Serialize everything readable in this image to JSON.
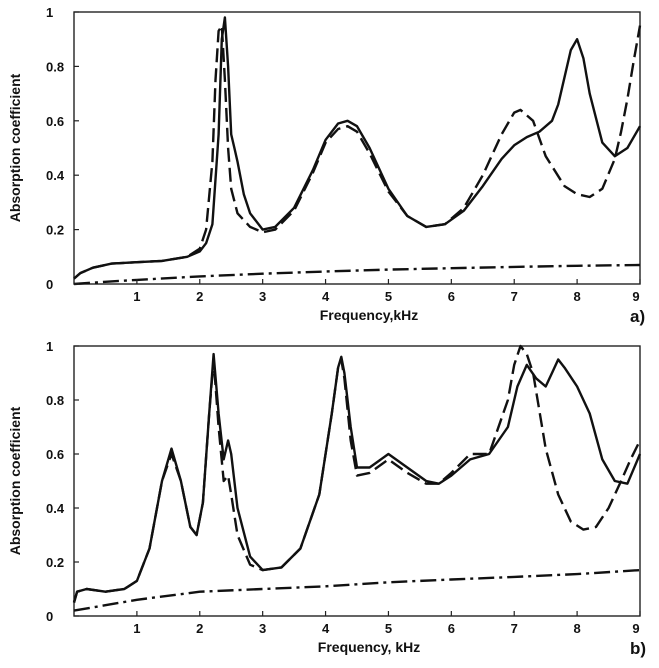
{
  "chart_data": [
    {
      "type": "line",
      "panel_label": "a)",
      "xlabel": "Frequency,kHz",
      "ylabel": "Absorption coefficient",
      "xlim": [
        0,
        9
      ],
      "ylim": [
        0,
        1
      ],
      "xticks": [
        "1",
        "2",
        "3",
        "4",
        "5",
        "6",
        "7",
        "8",
        "9"
      ],
      "yticks": [
        "0",
        "0.2",
        "0.4",
        "0.6",
        "0.8",
        "1"
      ],
      "grid": false,
      "series": [
        {
          "style": "solid",
          "x": [
            0,
            0.1,
            0.3,
            0.6,
            1.0,
            1.4,
            1.8,
            2.0,
            2.1,
            2.2,
            2.3,
            2.35,
            2.4,
            2.45,
            2.5,
            2.55,
            2.6,
            2.7,
            2.8,
            3.0,
            3.2,
            3.5,
            3.8,
            4.0,
            4.2,
            4.35,
            4.5,
            4.7,
            5.0,
            5.3,
            5.6,
            5.9,
            6.2,
            6.5,
            6.8,
            7.0,
            7.2,
            7.4,
            7.6,
            7.7,
            7.8,
            7.9,
            8.0,
            8.1,
            8.2,
            8.4,
            8.6,
            8.8,
            9.0
          ],
          "y": [
            0.02,
            0.04,
            0.06,
            0.075,
            0.08,
            0.085,
            0.1,
            0.12,
            0.15,
            0.22,
            0.55,
            0.9,
            0.98,
            0.8,
            0.55,
            0.5,
            0.45,
            0.33,
            0.26,
            0.2,
            0.21,
            0.28,
            0.42,
            0.53,
            0.59,
            0.6,
            0.58,
            0.5,
            0.35,
            0.25,
            0.21,
            0.22,
            0.27,
            0.36,
            0.46,
            0.51,
            0.54,
            0.56,
            0.6,
            0.66,
            0.76,
            0.86,
            0.9,
            0.83,
            0.7,
            0.52,
            0.47,
            0.5,
            0.58
          ]
        },
        {
          "style": "dashed",
          "x": [
            0,
            0.1,
            0.3,
            0.6,
            1.0,
            1.4,
            1.8,
            2.0,
            2.1,
            2.2,
            2.25,
            2.3,
            2.35,
            2.4,
            2.45,
            2.5,
            2.6,
            2.8,
            3.0,
            3.2,
            3.5,
            3.8,
            4.0,
            4.2,
            4.35,
            4.5,
            4.7,
            5.0,
            5.3,
            5.6,
            5.9,
            6.2,
            6.5,
            6.8,
            7.0,
            7.1,
            7.3,
            7.5,
            7.8,
            8.0,
            8.2,
            8.4,
            8.6,
            8.7,
            8.8,
            8.9,
            9.0
          ],
          "y": [
            0.02,
            0.04,
            0.06,
            0.075,
            0.08,
            0.085,
            0.1,
            0.13,
            0.2,
            0.45,
            0.75,
            0.93,
            0.95,
            0.75,
            0.5,
            0.35,
            0.26,
            0.21,
            0.19,
            0.2,
            0.27,
            0.41,
            0.52,
            0.57,
            0.58,
            0.56,
            0.48,
            0.34,
            0.25,
            0.21,
            0.22,
            0.28,
            0.4,
            0.55,
            0.63,
            0.64,
            0.6,
            0.47,
            0.36,
            0.33,
            0.32,
            0.35,
            0.46,
            0.56,
            0.68,
            0.82,
            0.95
          ]
        },
        {
          "style": "dash-dot",
          "x": [
            0,
            0.5,
            1,
            2,
            3,
            4,
            5,
            6,
            7,
            8,
            9
          ],
          "y": [
            0.0,
            0.008,
            0.015,
            0.028,
            0.038,
            0.046,
            0.053,
            0.058,
            0.063,
            0.067,
            0.07
          ]
        }
      ]
    },
    {
      "type": "line",
      "panel_label": "b)",
      "xlabel": "Frequency, kHz",
      "ylabel": "Absorption coefficient",
      "xlim": [
        0,
        9
      ],
      "ylim": [
        0,
        1
      ],
      "xticks": [
        "1",
        "2",
        "3",
        "4",
        "5",
        "6",
        "7",
        "8",
        "9"
      ],
      "yticks": [
        "0",
        "0.2",
        "0.4",
        "0.6",
        "0.8",
        "1"
      ],
      "grid": false,
      "series": [
        {
          "style": "solid",
          "x": [
            0,
            0.05,
            0.2,
            0.5,
            0.8,
            1.0,
            1.2,
            1.4,
            1.55,
            1.7,
            1.85,
            1.95,
            2.05,
            2.15,
            2.22,
            2.3,
            2.38,
            2.45,
            2.5,
            2.6,
            2.8,
            3.0,
            3.3,
            3.6,
            3.9,
            4.1,
            4.2,
            4.25,
            4.3,
            4.4,
            4.5,
            4.7,
            5.0,
            5.3,
            5.6,
            5.8,
            6.0,
            6.3,
            6.6,
            6.9,
            7.05,
            7.2,
            7.35,
            7.5,
            7.6,
            7.7,
            7.8,
            8.0,
            8.2,
            8.4,
            8.6,
            8.8,
            9.0
          ],
          "y": [
            0.05,
            0.09,
            0.1,
            0.09,
            0.1,
            0.13,
            0.25,
            0.5,
            0.62,
            0.5,
            0.33,
            0.3,
            0.42,
            0.75,
            0.97,
            0.75,
            0.58,
            0.65,
            0.6,
            0.4,
            0.22,
            0.17,
            0.18,
            0.25,
            0.45,
            0.75,
            0.92,
            0.96,
            0.9,
            0.7,
            0.55,
            0.55,
            0.6,
            0.55,
            0.5,
            0.49,
            0.52,
            0.58,
            0.6,
            0.7,
            0.85,
            0.93,
            0.88,
            0.85,
            0.9,
            0.95,
            0.92,
            0.85,
            0.75,
            0.58,
            0.5,
            0.49,
            0.6
          ]
        },
        {
          "style": "dashed",
          "x": [
            0,
            0.05,
            0.2,
            0.5,
            0.8,
            1.0,
            1.2,
            1.4,
            1.55,
            1.7,
            1.85,
            1.95,
            2.05,
            2.15,
            2.22,
            2.3,
            2.38,
            2.45,
            2.5,
            2.6,
            2.8,
            3.0,
            3.3,
            3.6,
            3.9,
            4.1,
            4.2,
            4.25,
            4.3,
            4.4,
            4.5,
            4.7,
            5.0,
            5.3,
            5.6,
            5.8,
            6.0,
            6.3,
            6.6,
            6.9,
            7.0,
            7.1,
            7.2,
            7.3,
            7.5,
            7.7,
            7.9,
            8.1,
            8.3,
            8.5,
            8.7,
            8.85,
            9.0
          ],
          "y": [
            0.05,
            0.09,
            0.1,
            0.09,
            0.1,
            0.13,
            0.25,
            0.5,
            0.6,
            0.5,
            0.33,
            0.3,
            0.42,
            0.75,
            0.95,
            0.7,
            0.5,
            0.52,
            0.45,
            0.3,
            0.19,
            0.17,
            0.18,
            0.25,
            0.45,
            0.75,
            0.92,
            0.95,
            0.88,
            0.65,
            0.52,
            0.53,
            0.58,
            0.53,
            0.49,
            0.49,
            0.53,
            0.6,
            0.6,
            0.8,
            0.93,
            1.0,
            0.97,
            0.9,
            0.62,
            0.45,
            0.35,
            0.32,
            0.33,
            0.4,
            0.5,
            0.58,
            0.65
          ]
        },
        {
          "style": "dash-dot",
          "x": [
            0,
            0.5,
            1,
            2,
            3,
            4,
            5,
            6,
            7,
            8,
            9
          ],
          "y": [
            0.02,
            0.04,
            0.06,
            0.09,
            0.1,
            0.11,
            0.125,
            0.135,
            0.145,
            0.155,
            0.17
          ]
        }
      ]
    }
  ]
}
